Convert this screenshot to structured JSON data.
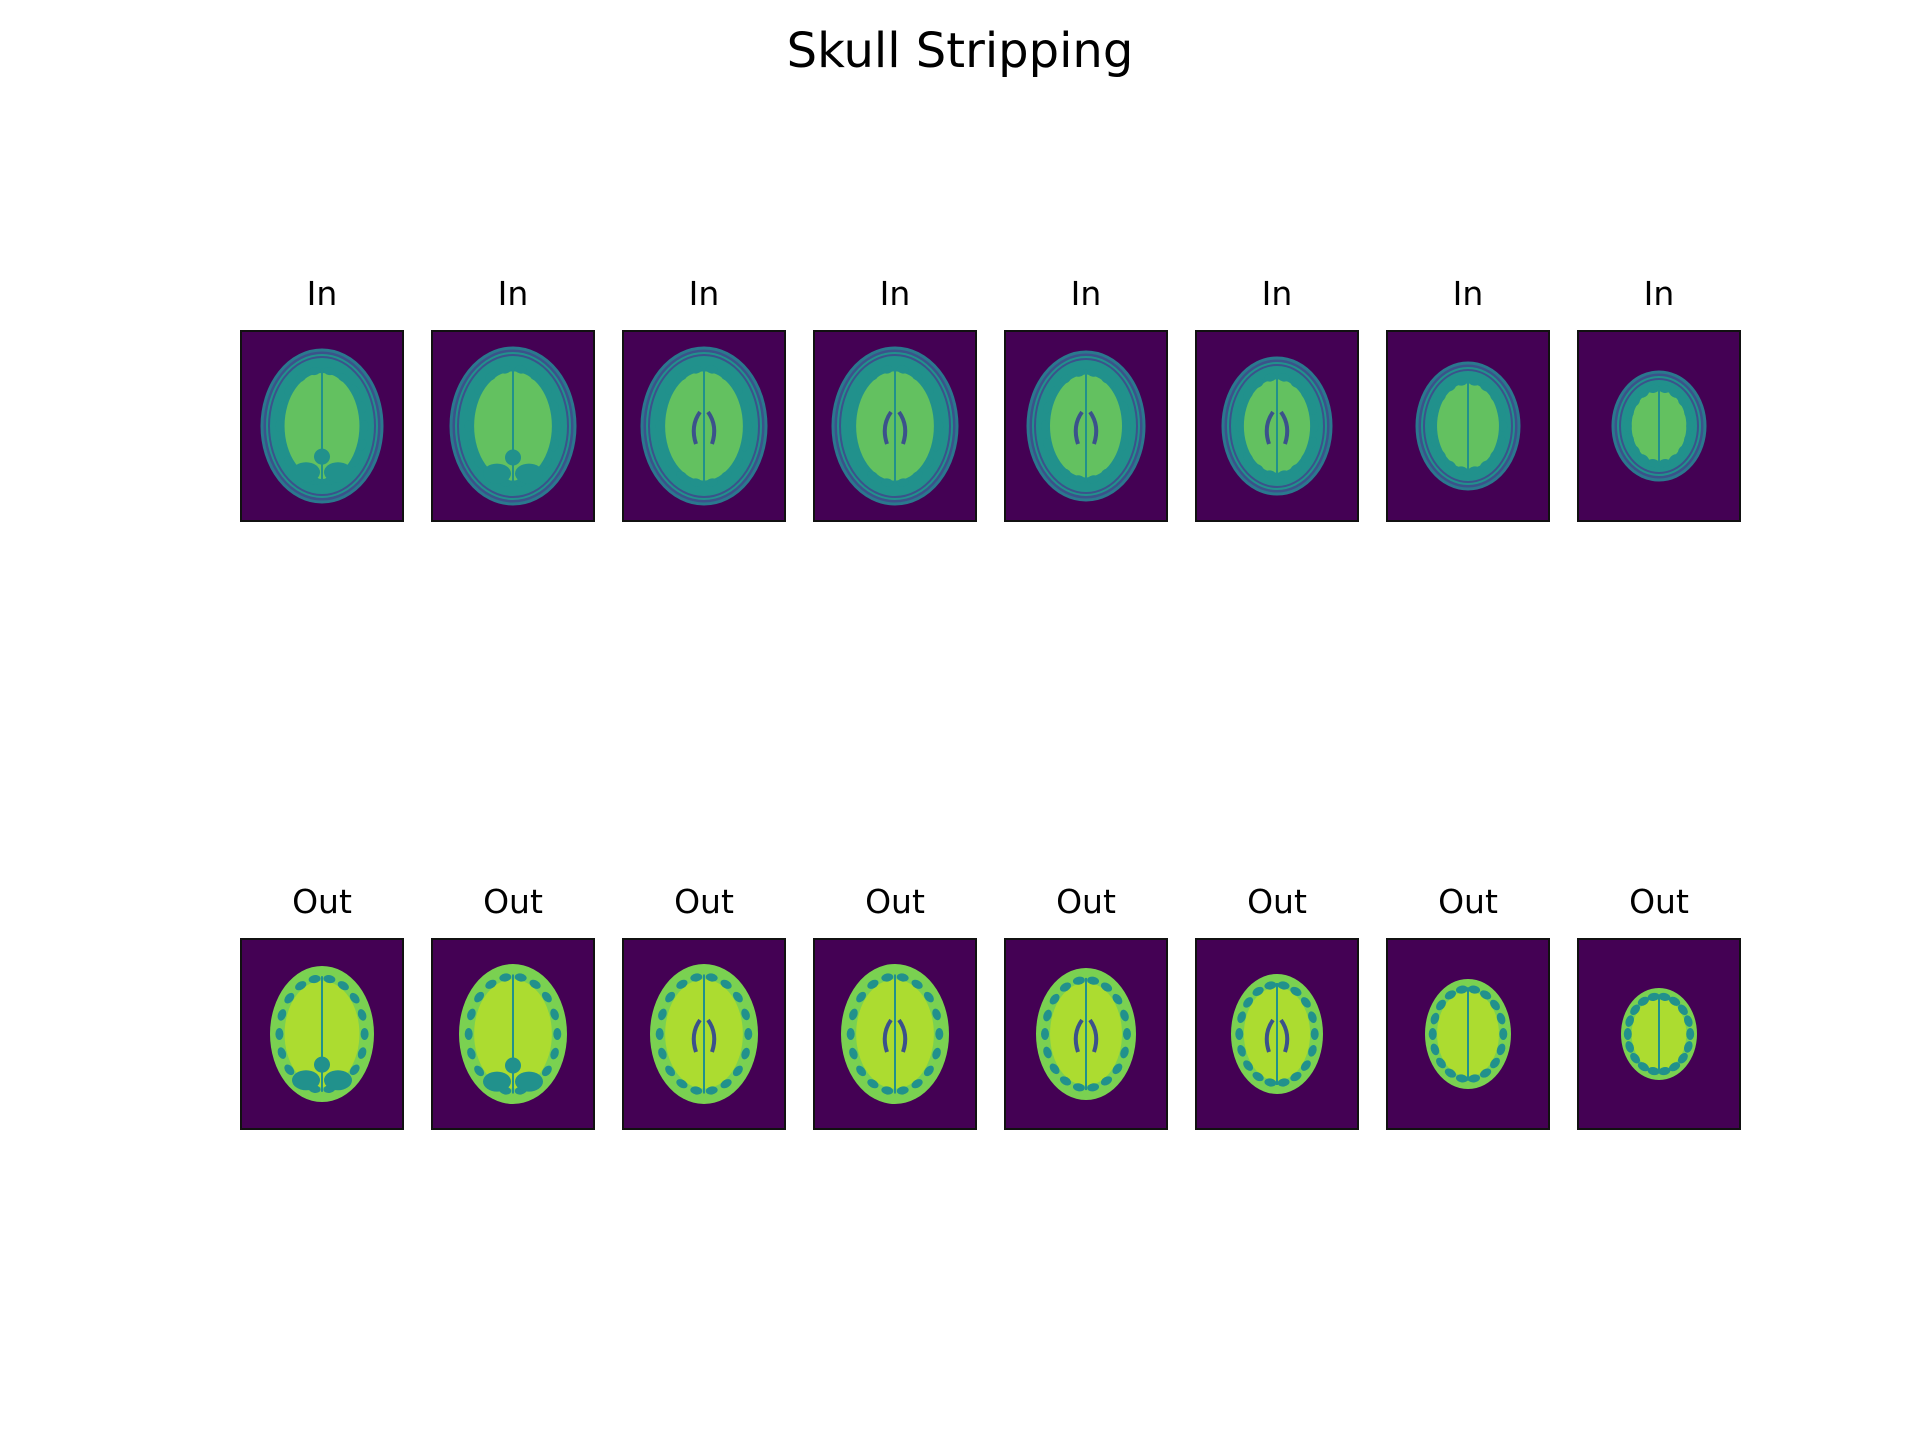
{
  "figure": {
    "title": "Skull Stripping"
  },
  "rows": [
    {
      "id": "in",
      "panels": [
        {
          "title": "In",
          "slice": 0,
          "skull": true
        },
        {
          "title": "In",
          "slice": 1,
          "skull": true
        },
        {
          "title": "In",
          "slice": 2,
          "skull": true
        },
        {
          "title": "In",
          "slice": 3,
          "skull": true
        },
        {
          "title": "In",
          "slice": 4,
          "skull": true
        },
        {
          "title": "In",
          "slice": 5,
          "skull": true
        },
        {
          "title": "In",
          "slice": 6,
          "skull": true
        },
        {
          "title": "In",
          "slice": 7,
          "skull": true
        }
      ]
    },
    {
      "id": "out",
      "panels": [
        {
          "title": "Out",
          "slice": 0,
          "skull": false
        },
        {
          "title": "Out",
          "slice": 1,
          "skull": false
        },
        {
          "title": "Out",
          "slice": 2,
          "skull": false
        },
        {
          "title": "Out",
          "slice": 3,
          "skull": false
        },
        {
          "title": "Out",
          "slice": 4,
          "skull": false
        },
        {
          "title": "Out",
          "slice": 5,
          "skull": false
        },
        {
          "title": "Out",
          "slice": 6,
          "skull": false
        },
        {
          "title": "Out",
          "slice": 7,
          "skull": false
        }
      ]
    }
  ],
  "colormap": {
    "name": "viridis",
    "background": "#440154",
    "skull_ring": "#2a788e",
    "gray_matter": "#21918c",
    "white_matter": "#7ad151",
    "bright": "#bddf26",
    "csf": "#3b528b"
  }
}
